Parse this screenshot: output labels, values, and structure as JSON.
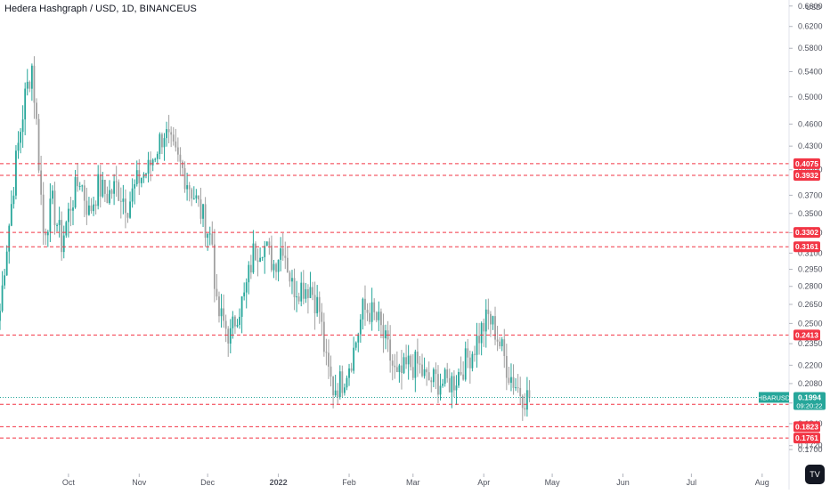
{
  "header": {
    "title": "Hedera Hashgraph / USD, 1D, BINANCEUS"
  },
  "chart_data": {
    "type": "candlestick",
    "title": "Hedera Hashgraph / USD, 1D, BINANCEUS",
    "ylabel": "USD",
    "scale": "log",
    "ylim": [
      0.165,
      0.665
    ],
    "y_ticks": [
      {
        "label": "0.6600",
        "value": 0.66
      },
      {
        "label": "0.6200",
        "value": 0.62
      },
      {
        "label": "0.5800",
        "value": 0.58
      },
      {
        "label": "0.5400",
        "value": 0.54
      },
      {
        "label": "0.5000",
        "value": 0.5
      },
      {
        "label": "0.4600",
        "value": 0.46
      },
      {
        "label": "0.4300",
        "value": 0.43
      },
      {
        "label": "0.4000",
        "value": 0.4
      },
      {
        "label": "0.3700",
        "value": 0.37
      },
      {
        "label": "0.3500",
        "value": 0.35
      },
      {
        "label": "0.3300",
        "value": 0.33
      },
      {
        "label": "0.3100",
        "value": 0.31
      },
      {
        "label": "0.2950",
        "value": 0.295
      },
      {
        "label": "0.2800",
        "value": 0.28
      },
      {
        "label": "0.2650",
        "value": 0.265
      },
      {
        "label": "0.2500",
        "value": 0.25
      },
      {
        "label": "0.2350",
        "value": 0.235
      },
      {
        "label": "0.2200",
        "value": 0.22
      },
      {
        "label": "0.2080",
        "value": 0.208
      },
      {
        "label": "0.1960",
        "value": 0.196
      },
      {
        "label": "0.1840",
        "value": 0.184
      },
      {
        "label": "0.1720",
        "value": 0.172
      },
      {
        "label": "0.1700",
        "value": 0.17
      }
    ],
    "x_ticks": [
      "Oct",
      "Nov",
      "Dec",
      "2022",
      "Feb",
      "Mar",
      "Apr",
      "May",
      "Jun",
      "Jul",
      "Aug"
    ],
    "x_start": "2021-09-01",
    "x_end": "2022-08-12",
    "x_tick_dates": [
      "2021-10-01",
      "2021-11-01",
      "2021-12-01",
      "2022-01-01",
      "2022-02-01",
      "2022-03-01",
      "2022-04-01",
      "2022-05-01",
      "2022-06-01",
      "2022-07-01",
      "2022-08-01"
    ],
    "series": [
      {
        "name": "HBARUSD",
        "key_points": [
          {
            "date": "2021-09-01",
            "value": 0.26
          },
          {
            "date": "2021-09-03",
            "value": 0.3
          },
          {
            "date": "2021-09-06",
            "value": 0.36
          },
          {
            "date": "2021-09-08",
            "value": 0.41
          },
          {
            "date": "2021-09-12",
            "value": 0.5
          },
          {
            "date": "2021-09-15",
            "value": 0.55
          },
          {
            "date": "2021-09-17",
            "value": 0.46
          },
          {
            "date": "2021-09-20",
            "value": 0.33
          },
          {
            "date": "2021-09-24",
            "value": 0.36
          },
          {
            "date": "2021-09-28",
            "value": 0.32
          },
          {
            "date": "2021-10-02",
            "value": 0.36
          },
          {
            "date": "2021-10-06",
            "value": 0.39
          },
          {
            "date": "2021-10-10",
            "value": 0.35
          },
          {
            "date": "2021-10-14",
            "value": 0.38
          },
          {
            "date": "2021-10-18",
            "value": 0.37
          },
          {
            "date": "2021-10-22",
            "value": 0.38
          },
          {
            "date": "2021-10-27",
            "value": 0.36
          },
          {
            "date": "2021-11-01",
            "value": 0.39
          },
          {
            "date": "2021-11-05",
            "value": 0.4
          },
          {
            "date": "2021-11-09",
            "value": 0.43
          },
          {
            "date": "2021-11-12",
            "value": 0.45
          },
          {
            "date": "2021-11-16",
            "value": 0.42
          },
          {
            "date": "2021-11-20",
            "value": 0.4
          },
          {
            "date": "2021-11-25",
            "value": 0.37
          },
          {
            "date": "2021-11-30",
            "value": 0.34
          },
          {
            "date": "2021-12-03",
            "value": 0.32
          },
          {
            "date": "2021-12-05",
            "value": 0.26
          },
          {
            "date": "2021-12-08",
            "value": 0.25
          },
          {
            "date": "2021-12-11",
            "value": 0.24
          },
          {
            "date": "2021-12-14",
            "value": 0.26
          },
          {
            "date": "2021-12-17",
            "value": 0.27
          },
          {
            "date": "2021-12-21",
            "value": 0.31
          },
          {
            "date": "2021-12-25",
            "value": 0.32
          },
          {
            "date": "2021-12-30",
            "value": 0.3
          },
          {
            "date": "2022-01-03",
            "value": 0.32
          },
          {
            "date": "2022-01-07",
            "value": 0.28
          },
          {
            "date": "2022-01-11",
            "value": 0.28
          },
          {
            "date": "2022-01-15",
            "value": 0.28
          },
          {
            "date": "2022-01-19",
            "value": 0.26
          },
          {
            "date": "2022-01-22",
            "value": 0.22
          },
          {
            "date": "2022-01-25",
            "value": 0.205
          },
          {
            "date": "2022-01-29",
            "value": 0.21
          },
          {
            "date": "2022-02-03",
            "value": 0.23
          },
          {
            "date": "2022-02-07",
            "value": 0.26
          },
          {
            "date": "2022-02-10",
            "value": 0.26
          },
          {
            "date": "2022-02-14",
            "value": 0.25
          },
          {
            "date": "2022-02-18",
            "value": 0.23
          },
          {
            "date": "2022-02-22",
            "value": 0.21
          },
          {
            "date": "2022-02-27",
            "value": 0.22
          },
          {
            "date": "2022-03-03",
            "value": 0.22
          },
          {
            "date": "2022-03-07",
            "value": 0.21
          },
          {
            "date": "2022-03-11",
            "value": 0.21
          },
          {
            "date": "2022-03-15",
            "value": 0.208
          },
          {
            "date": "2022-03-19",
            "value": 0.21
          },
          {
            "date": "2022-03-23",
            "value": 0.22
          },
          {
            "date": "2022-03-27",
            "value": 0.23
          },
          {
            "date": "2022-03-31",
            "value": 0.245
          },
          {
            "date": "2022-04-03",
            "value": 0.255
          },
          {
            "date": "2022-04-06",
            "value": 0.245
          },
          {
            "date": "2022-04-09",
            "value": 0.23
          },
          {
            "date": "2022-04-12",
            "value": 0.215
          },
          {
            "date": "2022-04-16",
            "value": 0.205
          },
          {
            "date": "2022-04-19",
            "value": 0.2
          },
          {
            "date": "2022-04-21",
            "value": 0.199
          }
        ]
      }
    ],
    "last_price": {
      "symbol": "HBARUSD",
      "value": "0.1994",
      "countdown": "09:20:22",
      "color": "#26a69a"
    },
    "levels": [
      {
        "label": "0.4075",
        "value": 0.4075
      },
      {
        "label": "0.3932",
        "value": 0.3932
      },
      {
        "label": "0.3302",
        "value": 0.3302
      },
      {
        "label": "0.3161",
        "value": 0.3161
      },
      {
        "label": "0.2413",
        "value": 0.2413
      },
      {
        "label": "0.1952",
        "value": 0.1952
      },
      {
        "label": "0.1823",
        "value": 0.1823
      },
      {
        "label": "0.1761",
        "value": 0.1761
      }
    ],
    "colors": {
      "up": "#26a69a",
      "down": "#a0a0a0",
      "level": "#f23645",
      "axis_text": "#50535e",
      "grid": "#e0e3eb"
    },
    "grid": false
  }
}
